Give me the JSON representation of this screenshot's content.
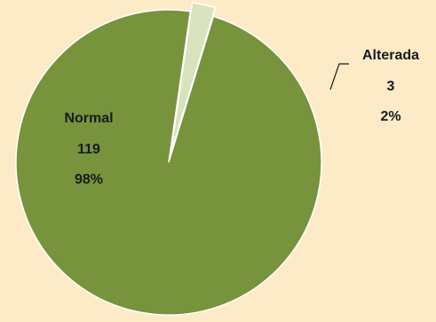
{
  "chart_data": {
    "type": "pie",
    "categories": [
      "Alterada",
      "Normal"
    ],
    "values": [
      3,
      119
    ],
    "percent_labels": [
      "2%",
      "98%"
    ],
    "slice_colors": [
      "#d8e3bd",
      "#77933c"
    ],
    "exploded_slice": "Alterada",
    "labels": [
      {
        "name": "Alterada",
        "value": "3",
        "percent": "2%"
      },
      {
        "name": "Normal",
        "value": "119",
        "percent": "98%"
      }
    ]
  },
  "colors": {
    "background": "#fdebc8",
    "slice_border": "#ffffff",
    "leader_line": "#1a1a1a"
  }
}
